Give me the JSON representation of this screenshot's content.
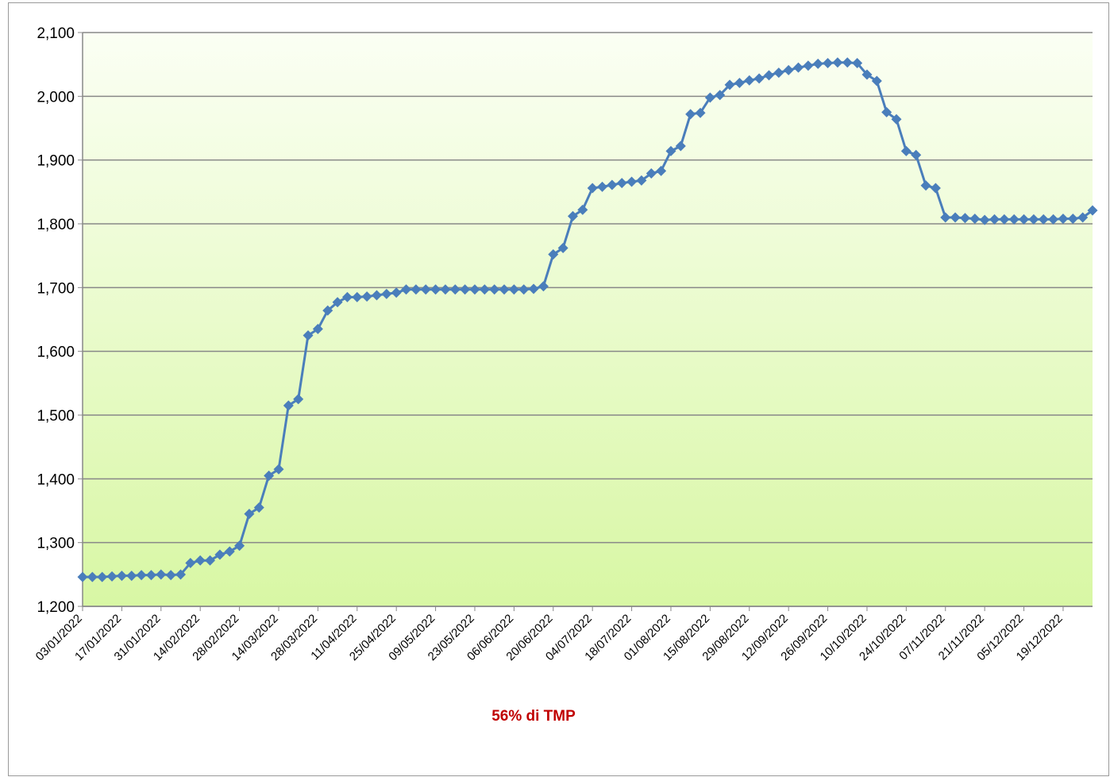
{
  "chart_data": {
    "type": "line",
    "annotation": "56% di TMP",
    "categories": [
      "03/01/2022",
      null,
      null,
      null,
      "17/01/2022",
      null,
      null,
      null,
      "31/01/2022",
      null,
      null,
      null,
      "14/02/2022",
      null,
      null,
      null,
      "28/02/2022",
      null,
      null,
      null,
      "14/03/2022",
      null,
      null,
      null,
      "28/03/2022",
      null,
      null,
      null,
      "11/04/2022",
      null,
      null,
      null,
      "25/04/2022",
      null,
      null,
      null,
      "09/05/2022",
      null,
      null,
      null,
      "23/05/2022",
      null,
      null,
      null,
      "06/06/2022",
      null,
      null,
      null,
      "20/06/2022",
      null,
      null,
      null,
      "04/07/2022",
      null,
      null,
      null,
      "18/07/2022",
      null,
      null,
      null,
      "01/08/2022",
      null,
      null,
      null,
      "15/08/2022",
      null,
      null,
      null,
      "29/08/2022",
      null,
      null,
      null,
      "12/09/2022",
      null,
      null,
      null,
      "26/09/2022",
      null,
      null,
      null,
      "10/10/2022",
      null,
      null,
      null,
      "24/10/2022",
      null,
      null,
      null,
      "07/11/2022",
      null,
      null,
      null,
      "21/11/2022",
      null,
      null,
      null,
      "05/12/2022",
      null,
      null,
      null,
      "19/12/2022",
      null,
      null,
      null
    ],
    "series": [
      {
        "color": "#4a7ebb",
        "values": [
          1246,
          1246,
          1246,
          1247,
          1248,
          1248,
          1249,
          1249,
          1250,
          1249,
          1250,
          1268,
          1272,
          1272,
          1281,
          1286,
          1295,
          1345,
          1355,
          1405,
          1415,
          1515,
          1525,
          1625,
          1635,
          1664,
          1677,
          1685,
          1685,
          1686,
          1688,
          1690,
          1692,
          1697,
          1697,
          1697,
          1697,
          1697,
          1697,
          1697,
          1697,
          1697,
          1697,
          1697,
          1697,
          1697,
          1698,
          1702,
          1752,
          1762,
          1812,
          1822,
          1856,
          1858,
          1861,
          1864,
          1866,
          1868,
          1879,
          1883,
          1914,
          1922,
          1972,
          1974,
          1998,
          2002,
          2018,
          2021,
          2025,
          2028,
          2033,
          2037,
          2041,
          2045,
          2048,
          2051,
          2052,
          2053,
          2053,
          2052,
          2034,
          2024,
          1975,
          1964,
          1914,
          1908,
          1860,
          1856,
          1810,
          1810,
          1809,
          1808,
          1806,
          1807,
          1807,
          1807,
          1807,
          1807,
          1807,
          1807,
          1808,
          1808,
          1810,
          1821
        ]
      }
    ],
    "ylim": [
      1200,
      2100
    ],
    "yticks": [
      {
        "value": 1200,
        "label": "1,200"
      },
      {
        "value": 1300,
        "label": "1,300"
      },
      {
        "value": 1400,
        "label": "1,400"
      },
      {
        "value": 1500,
        "label": "1,500"
      },
      {
        "value": 1600,
        "label": "1,600"
      },
      {
        "value": 1700,
        "label": "1,700"
      },
      {
        "value": 1800,
        "label": "1,800"
      },
      {
        "value": 1900,
        "label": "1,900"
      },
      {
        "value": 2000,
        "label": "2,000"
      },
      {
        "value": 2100,
        "label": "2,100"
      }
    ],
    "grid": true
  }
}
